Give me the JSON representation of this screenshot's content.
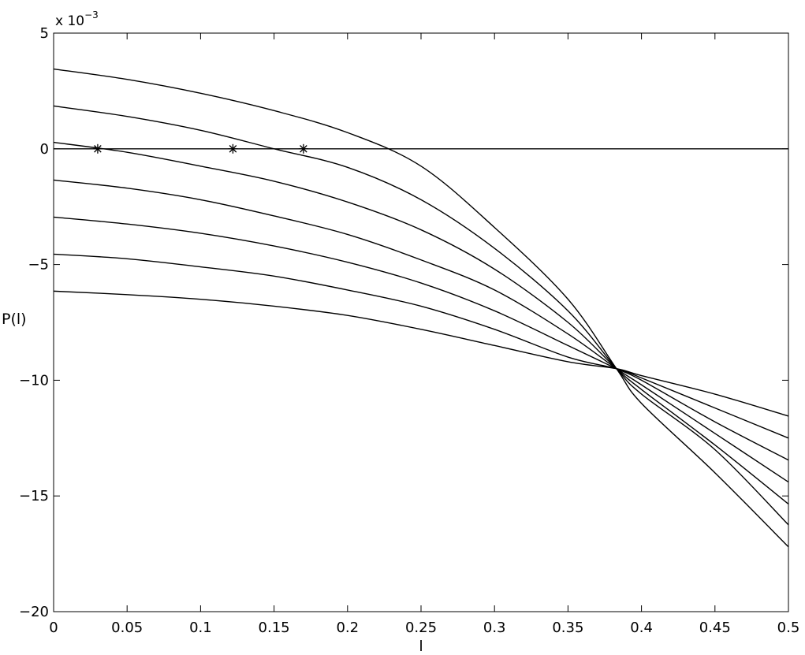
{
  "chart_data": {
    "type": "line",
    "title": "",
    "xlabel": "l",
    "ylabel": "P(l)",
    "y_exponent_label": "x 10",
    "y_exponent_power": "−3",
    "xlim": [
      0,
      0.5
    ],
    "ylim": [
      -20,
      5
    ],
    "x_ticks": [
      0,
      0.05,
      0.1,
      0.15,
      0.2,
      0.25,
      0.3,
      0.35,
      0.4,
      0.45,
      0.5
    ],
    "x_tick_labels": [
      "0",
      "0.05",
      "0.1",
      "0.15",
      "0.2",
      "0.25",
      "0.3",
      "0.35",
      "0.4",
      "0.45",
      "0.5"
    ],
    "y_ticks": [
      -20,
      -15,
      -10,
      -5,
      0,
      5
    ],
    "y_tick_labels": [
      "−20",
      "−15",
      "−10",
      "−5",
      "0",
      "5"
    ],
    "grid": false,
    "legend": "none",
    "line_color": "#000000",
    "x": [
      0,
      0.05,
      0.1,
      0.15,
      0.2,
      0.25,
      0.3,
      0.35,
      0.383,
      0.4,
      0.45,
      0.5
    ],
    "series": [
      {
        "values": [
          3.45,
          3.0,
          2.4,
          1.65,
          0.7,
          -0.75,
          -3.4,
          -6.5,
          -9.5,
          -11.0,
          -14.0,
          -17.2
        ]
      },
      {
        "values": [
          1.85,
          1.4,
          0.8,
          0.0,
          -0.8,
          -2.2,
          -4.3,
          -7.0,
          -9.5,
          -10.6,
          -13.0,
          -16.25
        ]
      },
      {
        "values": [
          0.28,
          -0.15,
          -0.75,
          -1.4,
          -2.3,
          -3.5,
          -5.2,
          -7.5,
          -9.5,
          -10.4,
          -12.8,
          -15.35
        ]
      },
      {
        "values": [
          -1.35,
          -1.7,
          -2.2,
          -2.9,
          -3.7,
          -4.8,
          -6.1,
          -8.0,
          -9.5,
          -10.2,
          -12.3,
          -14.4
        ]
      },
      {
        "values": [
          -2.95,
          -3.25,
          -3.65,
          -4.2,
          -4.9,
          -5.8,
          -7.0,
          -8.5,
          -9.5,
          -10.0,
          -11.8,
          -13.45
        ]
      },
      {
        "values": [
          -4.55,
          -4.75,
          -5.1,
          -5.5,
          -6.1,
          -6.8,
          -7.8,
          -9.0,
          -9.5,
          -9.9,
          -11.2,
          -12.5
        ]
      },
      {
        "values": [
          -6.15,
          -6.3,
          -6.5,
          -6.8,
          -7.2,
          -7.8,
          -8.5,
          -9.2,
          -9.5,
          -9.8,
          -10.6,
          -11.55
        ]
      }
    ],
    "reference_line": {
      "y": 0
    },
    "markers": [
      {
        "x": 0.03,
        "y": 0,
        "symbol": "*"
      },
      {
        "x": 0.122,
        "y": 0,
        "symbol": "*"
      },
      {
        "x": 0.17,
        "y": 0,
        "symbol": "*"
      }
    ]
  }
}
